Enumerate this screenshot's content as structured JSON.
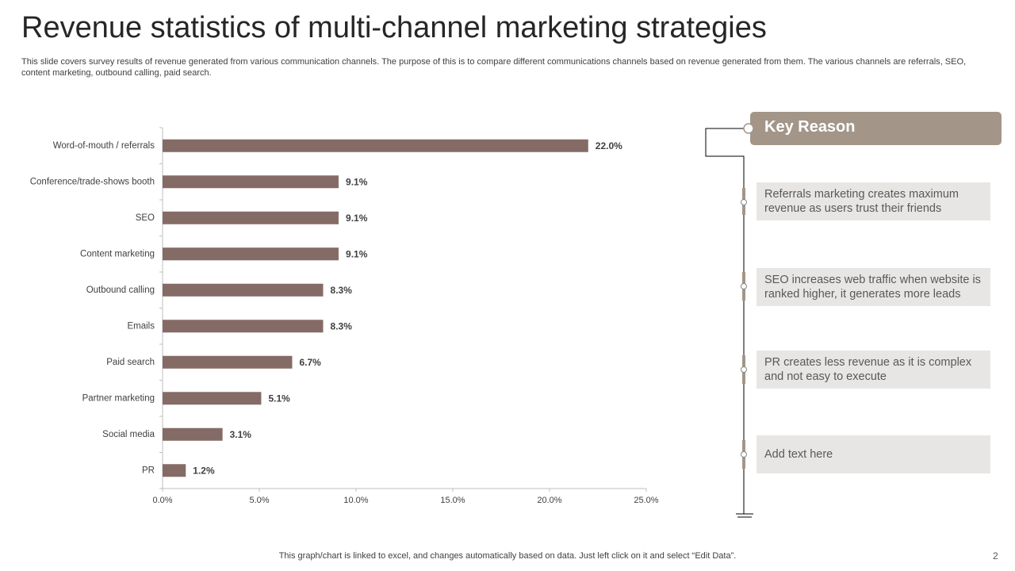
{
  "slide": {
    "title": "Revenue statistics of multi-channel marketing strategies",
    "subtitle": "This slide covers survey results of revenue generated from various communication channels. The purpose of this is to compare different communications channels based on revenue generated from them. The various channels are referrals, SEO, content marketing, outbound calling, paid search.",
    "panel_title": "Key Reason",
    "reasons": [
      "Referrals marketing creates maximum revenue as users trust their friends",
      "SEO increases web traffic when website is ranked higher, it generates more leads",
      "PR creates less revenue as it is complex and not easy to execute",
      "Add text here"
    ],
    "footer": "This graph/chart is linked to excel, and changes automatically based on data. Just left click on it and select “Edit Data”.",
    "page_number": "2"
  },
  "chart_data": {
    "type": "barh",
    "categories": [
      "Word-of-mouth / referrals",
      "Conference/trade-shows booth",
      "SEO",
      "Content marketing",
      "Outbound calling",
      "Emails",
      "Paid search",
      "Partner marketing",
      "Social media",
      "PR"
    ],
    "values": [
      22.0,
      9.1,
      9.1,
      9.1,
      8.3,
      8.3,
      6.7,
      5.1,
      3.1,
      1.2
    ],
    "value_labels": [
      "22.0%",
      "9.1%",
      "9.1%",
      "9.1%",
      "8.3%",
      "8.3%",
      "6.7%",
      "5.1%",
      "3.1%",
      "1.2%"
    ],
    "color": "#856b66",
    "xlim": [
      0,
      25
    ],
    "xticks": [
      {
        "value": 0,
        "label": "0.0%"
      },
      {
        "value": 5,
        "label": "5.0%"
      },
      {
        "value": 10,
        "label": "10.0%"
      },
      {
        "value": 15,
        "label": "15.0%"
      },
      {
        "value": 20,
        "label": "20.0%"
      },
      {
        "value": 25,
        "label": "25.0%"
      }
    ],
    "grid": false
  }
}
